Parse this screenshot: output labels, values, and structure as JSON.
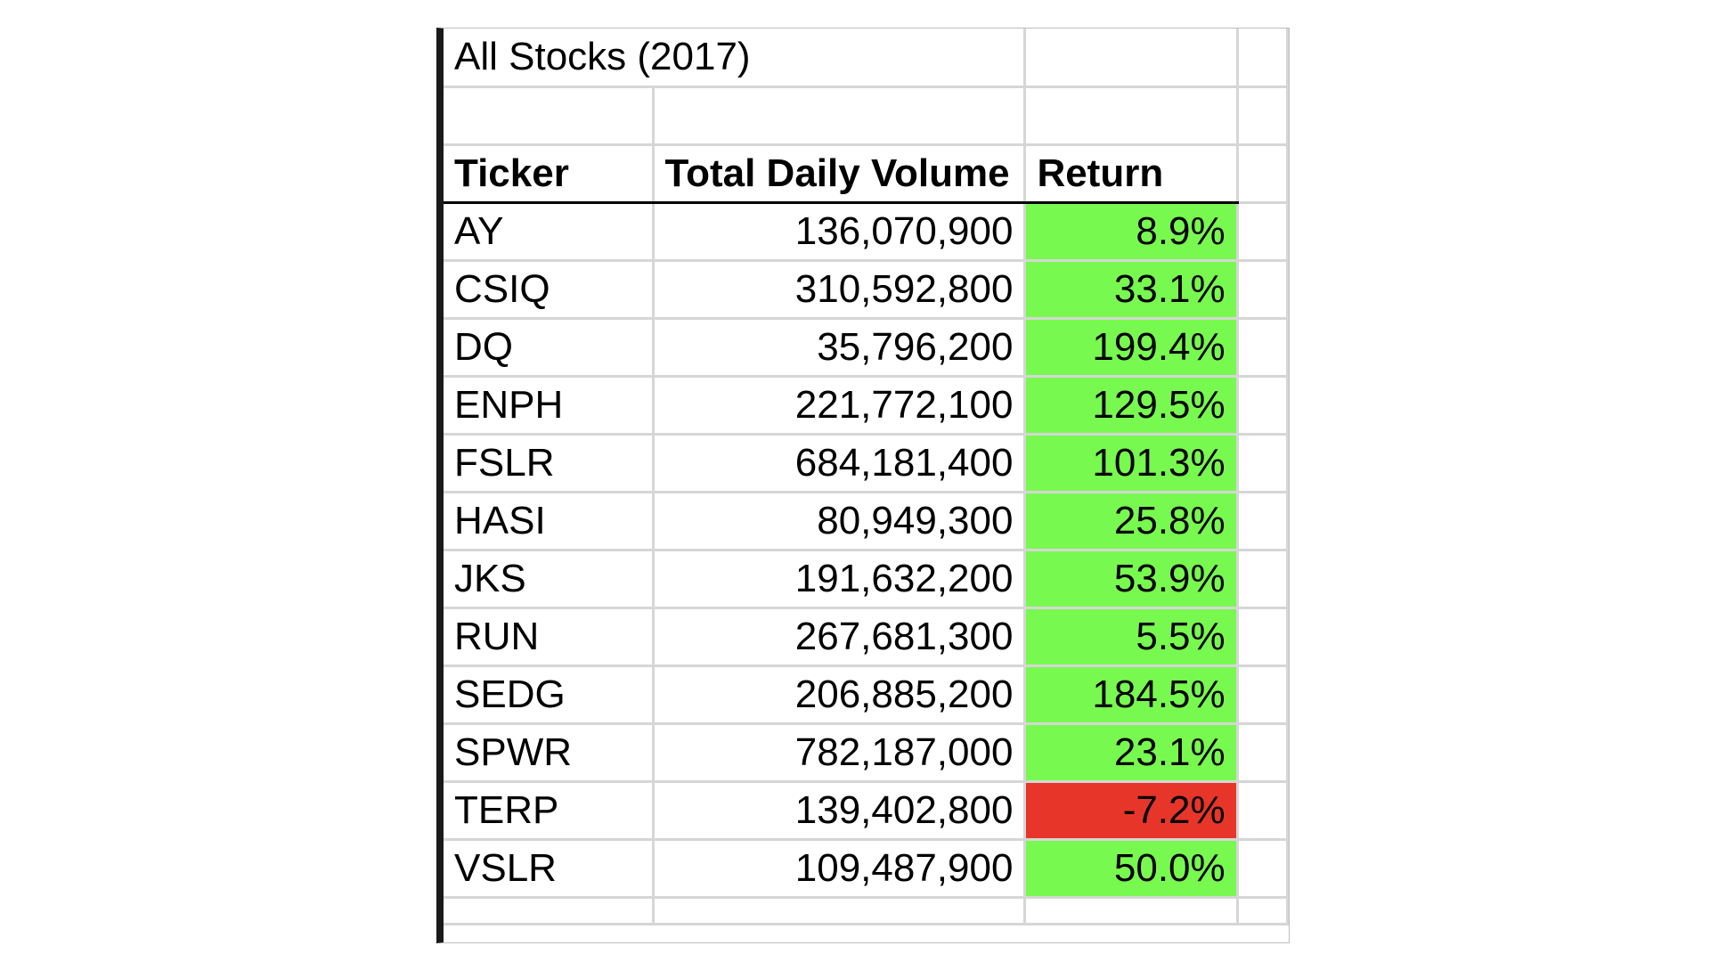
{
  "sheet": {
    "title": "All Stocks (2017)",
    "headers": {
      "ticker": "Ticker",
      "volume": "Total Daily Volume",
      "return": "Return"
    },
    "rows": [
      {
        "ticker": "AY",
        "volume": "136,070,900",
        "return": "8.9%"
      },
      {
        "ticker": "CSIQ",
        "volume": "310,592,800",
        "return": "33.1%"
      },
      {
        "ticker": "DQ",
        "volume": "35,796,200",
        "return": "199.4%"
      },
      {
        "ticker": "ENPH",
        "volume": "221,772,100",
        "return": "129.5%"
      },
      {
        "ticker": "FSLR",
        "volume": "684,181,400",
        "return": "101.3%"
      },
      {
        "ticker": "HASI",
        "volume": "80,949,300",
        "return": "25.8%"
      },
      {
        "ticker": "JKS",
        "volume": "191,632,200",
        "return": "53.9%"
      },
      {
        "ticker": "RUN",
        "volume": "267,681,300",
        "return": "5.5%"
      },
      {
        "ticker": "SEDG",
        "volume": "206,885,200",
        "return": "184.5%"
      },
      {
        "ticker": "SPWR",
        "volume": "782,187,000",
        "return": "23.1%"
      },
      {
        "ticker": "TERP",
        "volume": "139,402,800",
        "return": "-7.2%"
      },
      {
        "ticker": "VSLR",
        "volume": "109,487,900",
        "return": "50.0%"
      }
    ],
    "colors": {
      "positive_return": "#78f94f",
      "negative_return": "#e8352a",
      "gridline": "#d6d6d6",
      "left_border": "#1a1a1a"
    }
  }
}
